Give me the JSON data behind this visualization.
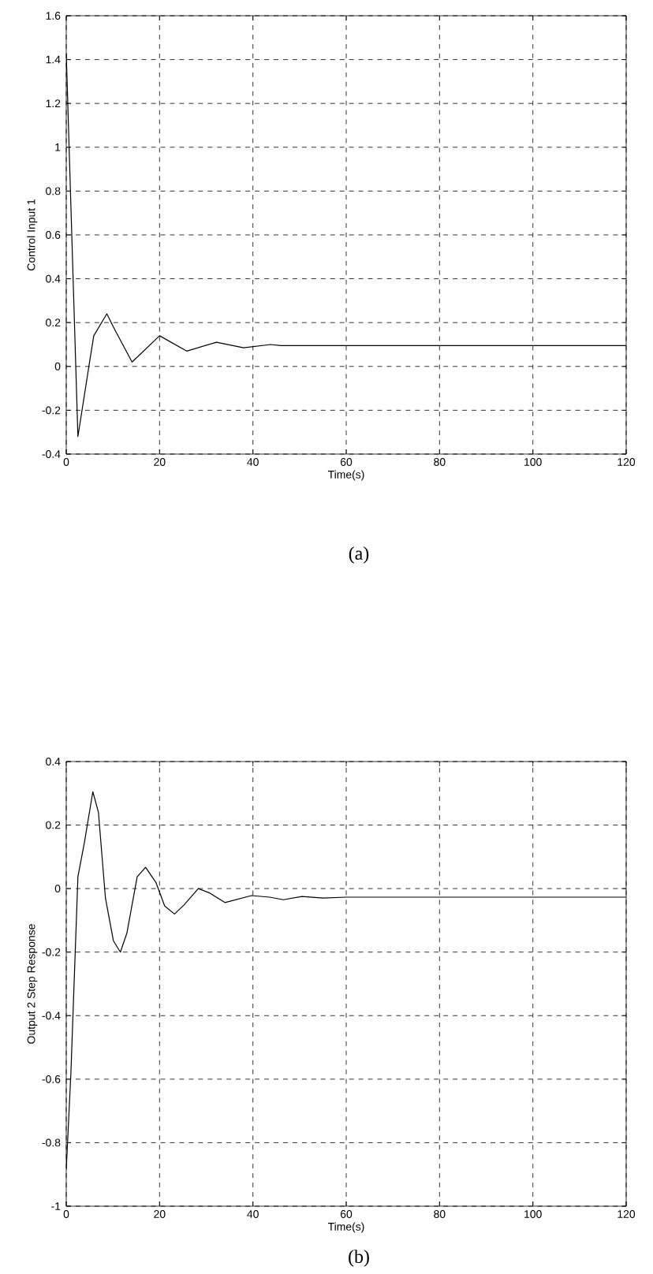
{
  "chart_data": [
    {
      "type": "line",
      "xlabel": "Time(s)",
      "ylabel": "Control Input 1",
      "annotations": [
        "(a)"
      ],
      "xlim": [
        0,
        120
      ],
      "ylim": [
        -0.4,
        1.6
      ],
      "xticks": [
        0,
        20,
        40,
        60,
        80,
        100,
        120
      ],
      "yticks": [
        -0.4,
        -0.2,
        0,
        0.2,
        0.4,
        0.6,
        0.8,
        1,
        1.2,
        1.4,
        1.6
      ],
      "grid": true,
      "series": [
        {
          "color": "#000000",
          "x": [
            0,
            2.5,
            5,
            5.9,
            8.7,
            10.1,
            14.1,
            20,
            25.8,
            32.2,
            38,
            43.8,
            46,
            120
          ],
          "values": [
            1.43,
            -0.32,
            0.02,
            0.14,
            0.24,
            0.18,
            0.02,
            0.14,
            0.07,
            0.11,
            0.085,
            0.1,
            0.095,
            0.095
          ]
        }
      ]
    },
    {
      "type": "line",
      "xlabel": "Time(s)",
      "ylabel": "Output 2 Step Response",
      "annotations": [
        "(b)"
      ],
      "xlim": [
        0,
        120
      ],
      "ylim": [
        -1,
        0.4
      ],
      "xticks": [
        0,
        20,
        40,
        60,
        80,
        100,
        120
      ],
      "yticks": [
        -1,
        -0.8,
        -0.6,
        -0.4,
        -0.2,
        0,
        0.2,
        0.4
      ],
      "grid": true,
      "series": [
        {
          "color": "#000000",
          "x": [
            0,
            1,
            2.5,
            3.9,
            5.7,
            6.9,
            8.4,
            10.1,
            11.6,
            13,
            15.2,
            17,
            19.2,
            21.1,
            23.2,
            25.2,
            28.3,
            30.6,
            34,
            39.7,
            43.6,
            46.5,
            50.5,
            55,
            60,
            120
          ],
          "values": [
            -0.885,
            -0.58,
            0.037,
            0.146,
            0.305,
            0.24,
            -0.03,
            -0.164,
            -0.2,
            -0.14,
            0.037,
            0.067,
            0.02,
            -0.055,
            -0.08,
            -0.052,
            0,
            -0.013,
            -0.044,
            -0.022,
            -0.027,
            -0.035,
            -0.025,
            -0.03,
            -0.027,
            -0.027
          ]
        }
      ]
    }
  ]
}
